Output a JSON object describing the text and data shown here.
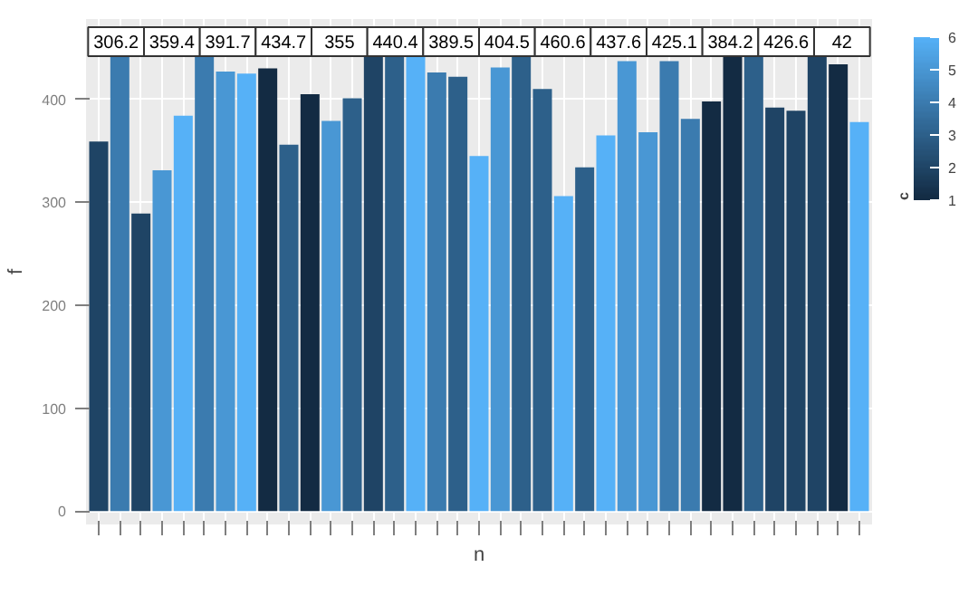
{
  "chart_data": {
    "type": "bar",
    "xlabel": "n",
    "ylabel": "f",
    "clabel": "c",
    "categories": [
      null,
      null,
      null,
      null,
      null,
      null,
      null,
      null,
      null,
      null,
      null,
      null,
      null,
      null,
      null,
      null,
      null,
      null,
      null,
      null,
      null,
      null,
      null,
      null,
      null,
      null,
      null,
      null,
      null,
      null,
      null,
      null,
      null,
      null,
      null,
      null,
      null
    ],
    "values": [
      359,
      441,
      289,
      331,
      384,
      441,
      427,
      425,
      430,
      356,
      405,
      379,
      401,
      441,
      441,
      441,
      426,
      422,
      345,
      431,
      441,
      410,
      306,
      334,
      365,
      437,
      368,
      437,
      381,
      398,
      441,
      441,
      392,
      389,
      441,
      434,
      378
    ],
    "cvalues": [
      2,
      4,
      2,
      5,
      6,
      4,
      5,
      6,
      1,
      3,
      1,
      5,
      3,
      2,
      3,
      6,
      4,
      3,
      6,
      5,
      3,
      3,
      6,
      3,
      6,
      5,
      5,
      4,
      4,
      1,
      1,
      3,
      2,
      2,
      2,
      1,
      6
    ],
    "clim": [
      1,
      6
    ],
    "cticks": [
      1,
      2,
      3,
      4,
      5,
      6
    ],
    "ylim": [
      -13,
      478
    ],
    "yticks": [
      0,
      100,
      200,
      300,
      400
    ],
    "grid": true,
    "annotations": [
      "306.2",
      "359.4",
      "391.7",
      "434.7",
      "355",
      "440.4",
      "389.5",
      "404.5",
      "460.6",
      "437.6",
      "425.1",
      "384.2",
      "426.6",
      "42"
    ]
  }
}
